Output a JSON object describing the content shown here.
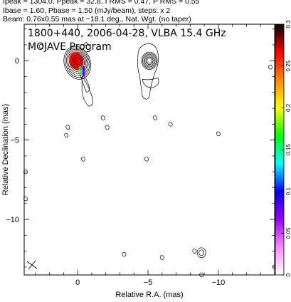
{
  "header": {
    "line1": "Ipeak = 1304.0, Ppeak = 32.8, I RMS = 0.47, P RMS = 0.55",
    "line2": "Ibase = 1.60, Pbase = 1.50 (mJy/beam), steps: x 2",
    "line3": "Beam: 0.76x0.55 mas at −18.1 deg., Nat. Wgt. (no taper)"
  },
  "chart_data": {
    "type": "heatmap",
    "title": "1800+440, 2006-04-28, VLBA 15.4 GHz",
    "subtitle": "MOJAVE Program",
    "xlabel": "Relative R.A. (mas)",
    "ylabel": "Relative Declination (mas)",
    "xlim": [
      3.8,
      -14
    ],
    "ylim": [
      -13.5,
      2.3
    ],
    "xticks": [
      0,
      -5,
      -10
    ],
    "yticks": [
      0,
      -5,
      -10
    ],
    "xtick_labels": [
      "0",
      "−5",
      "−10"
    ],
    "ytick_labels": [
      "0",
      "−5",
      "−10"
    ],
    "colorbar": {
      "range": [
        0,
        0.3
      ],
      "ticks": [
        0,
        0.05,
        0.1,
        0.15,
        0.2,
        0.25,
        0.3
      ],
      "tick_labels": [
        "0",
        "0.05",
        "0.1",
        "0.15",
        "0.2",
        "0.25",
        "0.3"
      ],
      "stops": [
        "#ffffff",
        "#ff88ff",
        "#9900ff",
        "#0000ff",
        "#00ffff",
        "#00ff00",
        "#ffff00",
        "#ff8800",
        "#ff0000",
        "#000000"
      ]
    },
    "core": {
      "x": 0.0,
      "y": 0.0,
      "contour_levels": 9
    },
    "jet_component": {
      "x": -5.0,
      "y": 0.0,
      "contour_levels": 6
    },
    "polarization_blob": {
      "x": 0.1,
      "y": 0.0
    },
    "isolated_contours": [
      {
        "x": 2.6,
        "y": 0.9
      },
      {
        "x": -1.8,
        "y": -3.6
      },
      {
        "x": -5.5,
        "y": -3.6
      },
      {
        "x": -6.6,
        "y": -4.0
      },
      {
        "x": 0.7,
        "y": -4.2
      },
      {
        "x": -2.1,
        "y": -4.2
      },
      {
        "x": 0.8,
        "y": -4.7
      },
      {
        "x": -0.4,
        "y": -6.2
      },
      {
        "x": -4.9,
        "y": -6.2
      },
      {
        "x": 3.7,
        "y": -7.0
      },
      {
        "x": 3.7,
        "y": -8.7
      },
      {
        "x": -8.3,
        "y": -12.0
      },
      {
        "x": -8.8,
        "y": -13.5
      },
      {
        "x": -3.3,
        "y": -12.2
      },
      {
        "x": -6.0,
        "y": -12.4
      },
      {
        "x": -14.0,
        "y": -13.0
      },
      {
        "x": -13.7,
        "y": -0.4
      },
      {
        "x": -10.0,
        "y": -4.6
      }
    ],
    "beam": {
      "major": 0.76,
      "minor": 0.55,
      "pa": -18.1
    }
  }
}
